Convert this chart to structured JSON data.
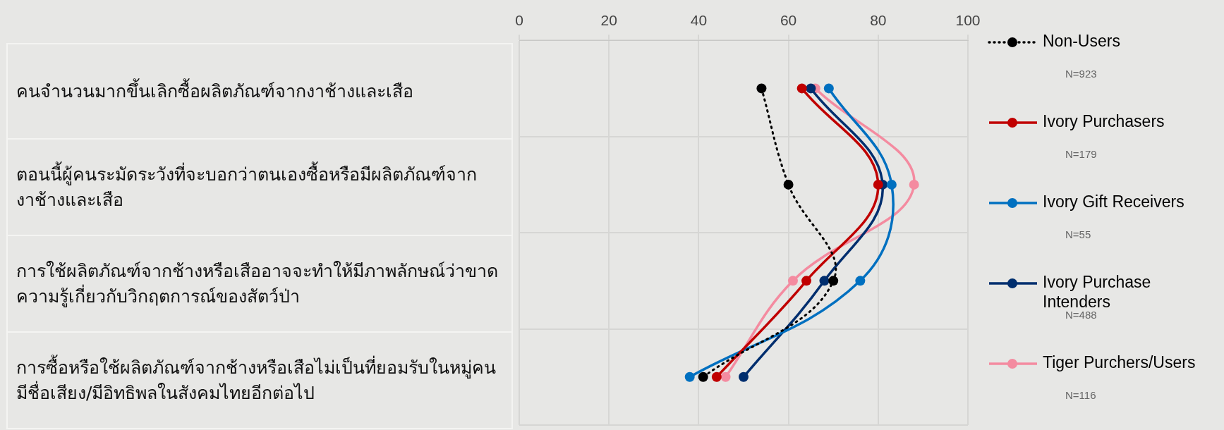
{
  "chart_data": {
    "type": "line",
    "orientation": "horizontal",
    "categories": [
      "คนจำนวนมากขึ้นเลิกซื้อผลิตภัณฑ์จากงาช้างและเสือ",
      "ตอนนี้ผู้คนระมัดระวังที่จะบอกว่าตนเองซื้อหรือมีผลิตภัณฑ์จากงาช้างและเสือ",
      "การใช้ผลิตภัณฑ์จากช้างหรือเสืออาจจะทำให้มีภาพลักษณ์ว่าขาดความรู้เกี่ยวกับวิกฤตการณ์ของสัตว์ป่า",
      "การซื้อหรือใช้ผลิตภัณฑ์จากช้างหรือเสือไม่เป็นที่ยอมรับในหมู่คนมีชื่อเสียง/มีอิทธิพลในสังคมไทยอีกต่อไป"
    ],
    "series": [
      {
        "name": "Non-Users",
        "color": "#000000",
        "values": [
          54,
          60,
          70,
          41
        ],
        "line_style": "dotted"
      },
      {
        "name": "Ivory Purchasers",
        "color": "#c00000",
        "values": [
          63,
          80,
          64,
          44
        ]
      },
      {
        "name": "Ivory Gift Receivers",
        "color": "#0070c0",
        "values": [
          69,
          83,
          76,
          38
        ]
      },
      {
        "name": "Ivory Purchase Intenders",
        "color": "#002e6e",
        "values": [
          65,
          81,
          68,
          50
        ]
      },
      {
        "name": "Tiger Purchers/Users",
        "color": "#f48ba0",
        "values": [
          66,
          88,
          61,
          46
        ]
      }
    ],
    "annotations": [
      "N=923",
      "N=179",
      "N=55",
      "N=488",
      "N=116"
    ],
    "xlim": [
      0,
      100
    ],
    "xticks": [
      0,
      20,
      40,
      60,
      80,
      100
    ],
    "grid": true,
    "legend": "right",
    "marker": "circle",
    "line_style": "solid"
  }
}
